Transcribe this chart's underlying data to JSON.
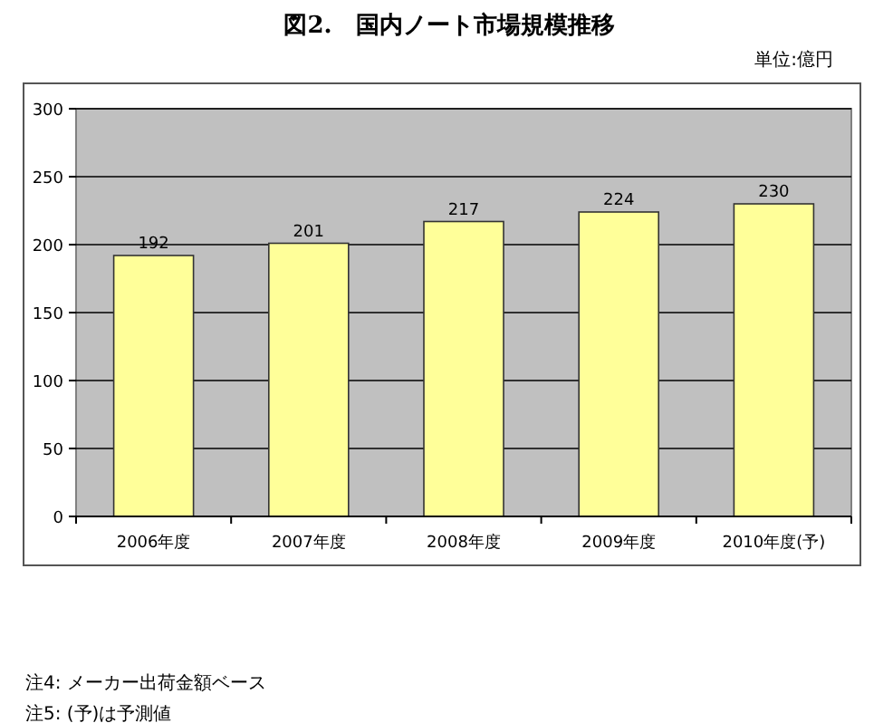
{
  "chart_data": {
    "type": "bar",
    "title": "図2.　国内ノート市場規模推移",
    "annotations": [
      "単位:億円",
      "注4: メーカー出荷金額ベース",
      "注5: (予)は予測値"
    ],
    "categories": [
      "2006年度",
      "2007年度",
      "2008年度",
      "2009年度",
      "2010年度(予)"
    ],
    "values": [
      192,
      201,
      217,
      224,
      230
    ],
    "color": "#ffff99",
    "ylim": [
      0,
      300
    ],
    "yticks": [
      0,
      50,
      100,
      150,
      200,
      250,
      300
    ],
    "grid": "y",
    "data_labels": true
  }
}
